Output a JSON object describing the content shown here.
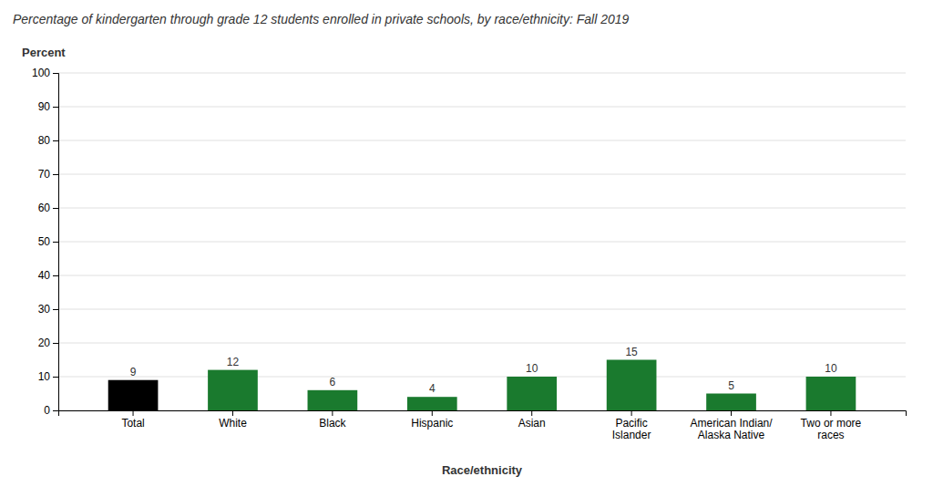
{
  "chart_data": {
    "type": "bar",
    "title": "Percentage of kindergarten through grade 12 students enrolled in private schools, by race/ethnicity: Fall 2019",
    "xlabel": "Race/ethnicity",
    "ylabel": "Percent",
    "categories": [
      "Total",
      "White",
      "Black",
      "Hispanic",
      "Asian",
      "Pacific\nIslander",
      "American Indian/\nAlaska Native",
      "Two or more\nraces"
    ],
    "values": [
      9,
      12,
      6,
      4,
      10,
      15,
      5,
      10
    ],
    "colors": [
      "#000000",
      "#1a7a2e",
      "#1a7a2e",
      "#1a7a2e",
      "#1a7a2e",
      "#1a7a2e",
      "#1a7a2e",
      "#1a7a2e"
    ],
    "ylim": [
      0,
      100
    ],
    "yticks": [
      0,
      10,
      20,
      30,
      40,
      50,
      60,
      70,
      80,
      90,
      100
    ],
    "grid": true,
    "data_labels": true
  }
}
